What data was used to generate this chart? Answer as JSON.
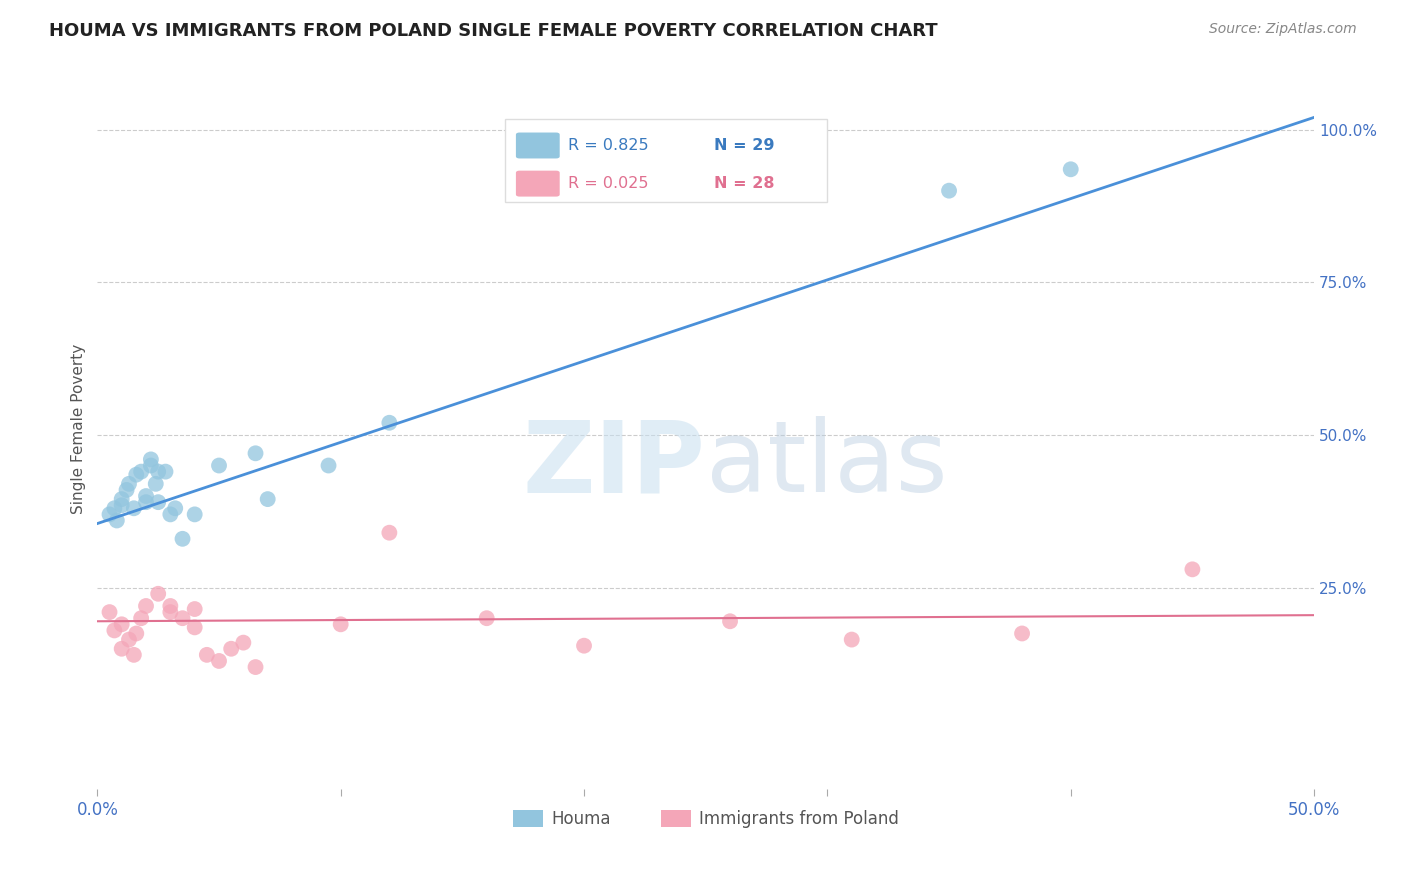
{
  "title": "HOUMA VS IMMIGRANTS FROM POLAND SINGLE FEMALE POVERTY CORRELATION CHART",
  "source": "Source: ZipAtlas.com",
  "ylabel": "Single Female Poverty",
  "xlim": [
    0,
    0.5
  ],
  "ylim": [
    -0.08,
    1.1
  ],
  "legend_label1": "Houma",
  "legend_label2": "Immigrants from Poland",
  "legend_R1": "R = 0.825",
  "legend_N1": "N = 29",
  "legend_R2": "R = 0.025",
  "legend_N2": "N = 28",
  "watermark_zip": "ZIP",
  "watermark_atlas": "atlas",
  "blue_color": "#92c5de",
  "pink_color": "#f4a6b8",
  "blue_line_color": "#4a90d9",
  "pink_line_color": "#e07090",
  "blue_line_x": [
    0.0,
    0.5
  ],
  "blue_line_y": [
    0.355,
    1.02
  ],
  "pink_line_x": [
    0.0,
    0.5
  ],
  "pink_line_y": [
    0.195,
    0.205
  ],
  "houma_x": [
    0.005,
    0.007,
    0.008,
    0.01,
    0.01,
    0.012,
    0.013,
    0.015,
    0.016,
    0.018,
    0.02,
    0.02,
    0.022,
    0.022,
    0.024,
    0.025,
    0.025,
    0.028,
    0.03,
    0.032,
    0.035,
    0.04,
    0.05,
    0.065,
    0.07,
    0.095,
    0.12,
    0.35,
    0.4
  ],
  "houma_y": [
    0.37,
    0.38,
    0.36,
    0.385,
    0.395,
    0.41,
    0.42,
    0.38,
    0.435,
    0.44,
    0.39,
    0.4,
    0.45,
    0.46,
    0.42,
    0.44,
    0.39,
    0.44,
    0.37,
    0.38,
    0.33,
    0.37,
    0.45,
    0.47,
    0.395,
    0.45,
    0.52,
    0.9,
    0.935
  ],
  "poland_x": [
    0.005,
    0.007,
    0.01,
    0.01,
    0.013,
    0.015,
    0.016,
    0.018,
    0.02,
    0.025,
    0.03,
    0.03,
    0.035,
    0.04,
    0.04,
    0.045,
    0.05,
    0.055,
    0.06,
    0.065,
    0.1,
    0.12,
    0.16,
    0.2,
    0.26,
    0.31,
    0.38,
    0.45
  ],
  "poland_y": [
    0.21,
    0.18,
    0.19,
    0.15,
    0.165,
    0.14,
    0.175,
    0.2,
    0.22,
    0.24,
    0.21,
    0.22,
    0.2,
    0.185,
    0.215,
    0.14,
    0.13,
    0.15,
    0.16,
    0.12,
    0.19,
    0.34,
    0.2,
    0.155,
    0.195,
    0.165,
    0.175,
    0.28
  ],
  "ytick_positions": [
    0,
    0.25,
    0.5,
    0.75,
    1.0
  ],
  "ytick_labels": [
    "",
    "25.0%",
    "50.0%",
    "75.0%",
    "100.0%"
  ],
  "xtick_positions": [
    0.0,
    0.1,
    0.2,
    0.3,
    0.4,
    0.5
  ],
  "xtick_labels": [
    "0.0%",
    "",
    "",
    "",
    "",
    "50.0%"
  ]
}
